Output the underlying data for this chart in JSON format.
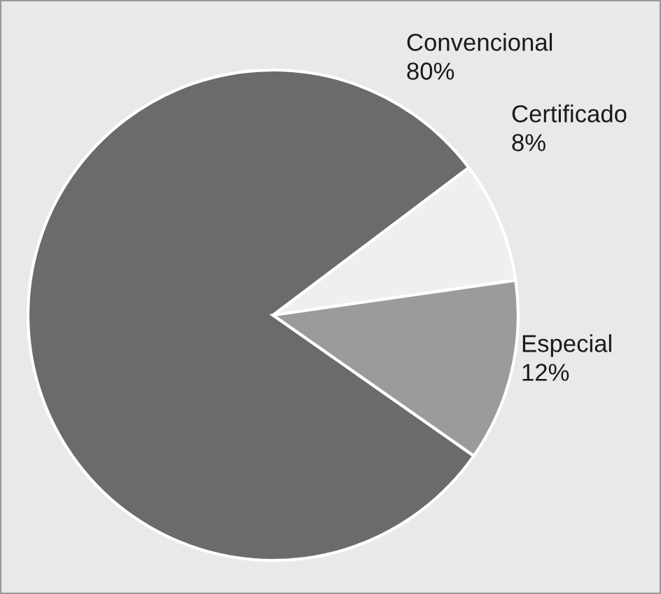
{
  "chart_data": {
    "type": "pie",
    "categories": [
      "Convencional",
      "Certificado",
      "Especial"
    ],
    "values": [
      80,
      8,
      12
    ],
    "colors": [
      "#6b6b6b",
      "#efefef",
      "#9b9b9b"
    ],
    "value_labels": [
      "80%",
      "8%",
      "12%"
    ]
  }
}
